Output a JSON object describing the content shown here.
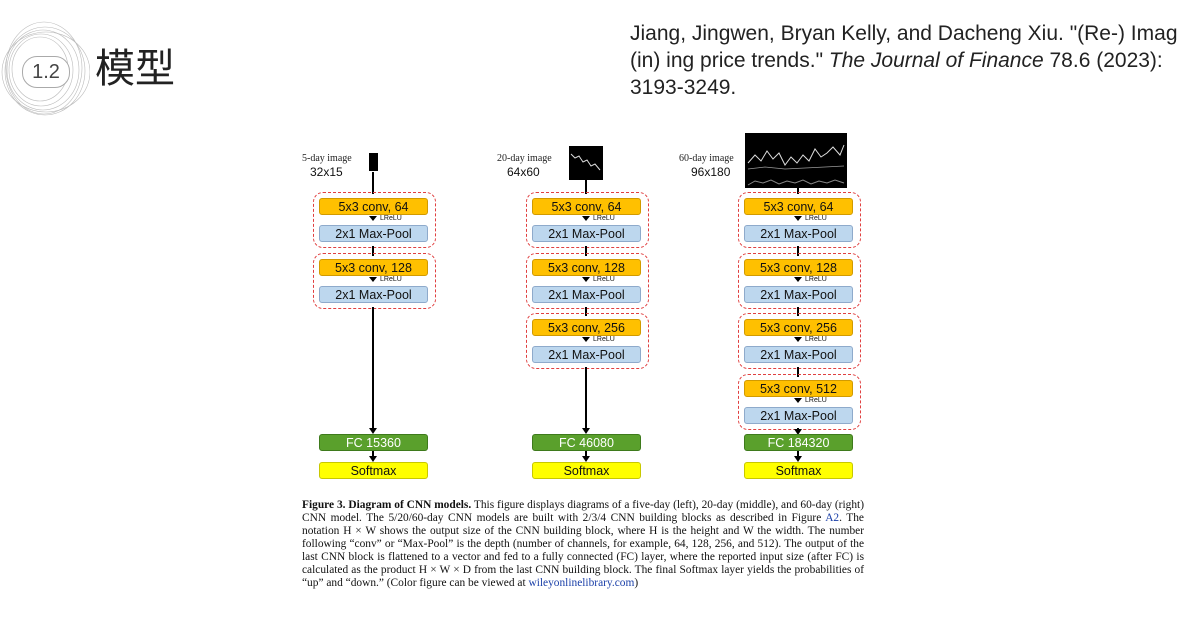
{
  "header": {
    "section_number": "1.2",
    "title": "模型",
    "citation": {
      "part1": "Jiang, Jingwen, Bryan Kelly, and Dacheng Xiu. \"(Re-) Imag (in) ing price trends.\" ",
      "journal": "The Journal of Finance",
      "part2": " 78.6 (2023): 3193-3249."
    }
  },
  "columns": [
    {
      "image_label": "5-day image",
      "image_size": "32x15",
      "blocks": [
        {
          "conv": "5x3 conv, 64",
          "act": "LReLU",
          "pool": "2x1 Max-Pool"
        },
        {
          "conv": "5x3 conv, 128",
          "act": "LReLU",
          "pool": "2x1 Max-Pool"
        }
      ],
      "fc": "FC 15360",
      "softmax": "Softmax"
    },
    {
      "image_label": "20-day image",
      "image_size": "64x60",
      "blocks": [
        {
          "conv": "5x3 conv, 64",
          "act": "LReLU",
          "pool": "2x1 Max-Pool"
        },
        {
          "conv": "5x3 conv, 128",
          "act": "LReLU",
          "pool": "2x1 Max-Pool"
        },
        {
          "conv": "5x3 conv, 256",
          "act": "LReLU",
          "pool": "2x1 Max-Pool"
        }
      ],
      "fc": "FC 46080",
      "softmax": "Softmax"
    },
    {
      "image_label": "60-day image",
      "image_size": "96x180",
      "blocks": [
        {
          "conv": "5x3 conv, 64",
          "act": "LReLU",
          "pool": "2x1 Max-Pool"
        },
        {
          "conv": "5x3 conv, 128",
          "act": "LReLU",
          "pool": "2x1 Max-Pool"
        },
        {
          "conv": "5x3 conv, 256",
          "act": "LReLU",
          "pool": "2x1 Max-Pool"
        },
        {
          "conv": "5x3 conv, 512",
          "act": "LReLU",
          "pool": "2x1 Max-Pool"
        }
      ],
      "fc": "FC 184320",
      "softmax": "Softmax"
    }
  ],
  "caption": {
    "heading": "Figure 3. Diagram of CNN models.",
    "text_a": " This figure displays diagrams of a five-day (left), 20-day (middle), and 60-day (right) CNN model. The 5/20/60-day CNN models are built with 2/3/4 CNN building blocks as described in Figure ",
    "link_a2": "A2",
    "text_b": ". The notation H × W shows the output size of the CNN building block, where H is the height and W the width. The number following “conv” or “Max-Pool” is the depth (number of channels, for example, 64, 128, 256, and 512). The output of the last CNN block is flattened to a vector and fed to a fully connected (FC) layer, where the reported input size (after FC) is calculated as the product H × W × D from the last CNN building block. The final Softmax layer yields the probabilities of “up” and “down.” (Color figure can be viewed at ",
    "link_wiley": "wileyonlinelibrary.com",
    "text_c": ")"
  }
}
